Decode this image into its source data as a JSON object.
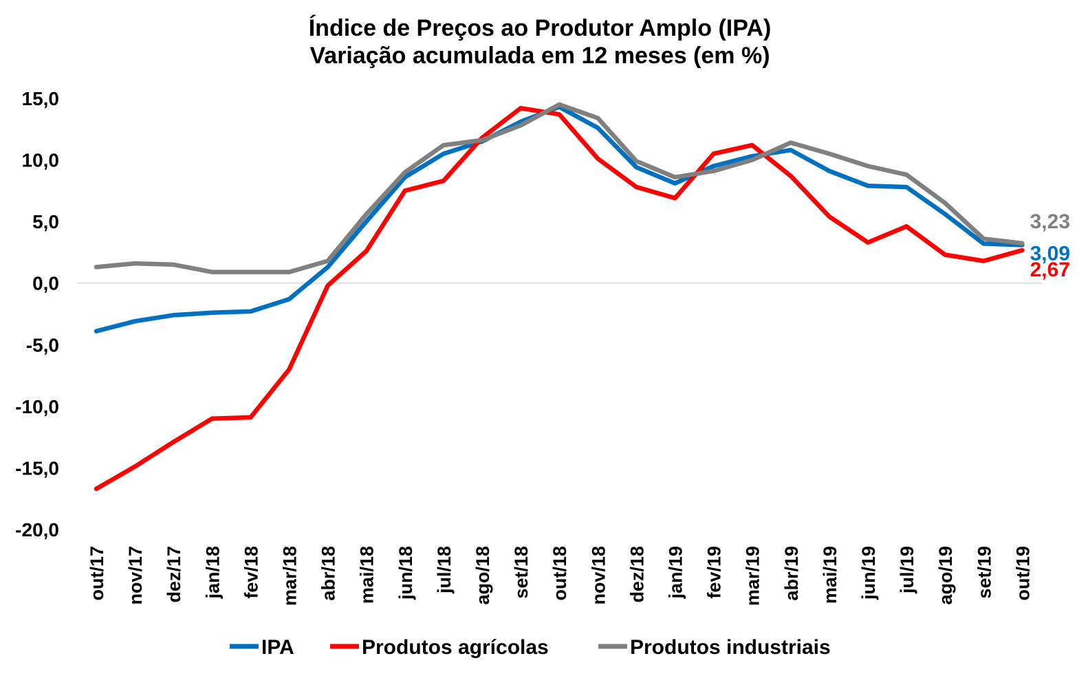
{
  "chart_data": {
    "type": "line",
    "title": "Índice de Preços ao Produtor Amplo (IPA)",
    "subtitle": "Variação acumulada em 12 meses (em %)",
    "ylim": [
      -20,
      15
    ],
    "yticks": [
      "15,0",
      "10,0",
      "5,0",
      "0,0",
      "-5,0",
      "-10,0",
      "-15,0",
      "-20,0"
    ],
    "ytick_values": [
      15,
      10,
      5,
      0,
      -5,
      -10,
      -15,
      -20
    ],
    "x": [
      "out/17",
      "nov/17",
      "dez/17",
      "jan/18",
      "fev/18",
      "mar/18",
      "abr/18",
      "mai/18",
      "jun/18",
      "jul/18",
      "ago/18",
      "set/18",
      "out/18",
      "nov/18",
      "dez/18",
      "jan/19",
      "fev/19",
      "mar/19",
      "abr/19",
      "mai/19",
      "jun/19",
      "jul/19",
      "ago/19",
      "set/19",
      "out/19"
    ],
    "grid": false,
    "zero_line": true,
    "legend_position": "bottom",
    "series": [
      {
        "name": "IPA",
        "color": "#0070C0",
        "values": [
          -3.9,
          -3.1,
          -2.6,
          -2.4,
          -2.3,
          -1.3,
          1.3,
          5.0,
          8.6,
          10.5,
          11.5,
          13.1,
          14.3,
          12.6,
          9.4,
          8.1,
          9.5,
          10.3,
          10.8,
          9.1,
          7.9,
          7.8,
          5.6,
          3.2,
          3.09
        ],
        "end_label": "3,09"
      },
      {
        "name": "Produtos agrícolas",
        "color": "#FF0000",
        "values": [
          -16.7,
          -14.9,
          -12.9,
          -11.0,
          -10.9,
          -7.0,
          -0.2,
          2.6,
          7.5,
          8.3,
          11.8,
          14.2,
          13.7,
          10.1,
          7.8,
          6.9,
          10.5,
          11.2,
          8.7,
          5.4,
          3.3,
          4.6,
          2.3,
          1.8,
          2.67
        ],
        "end_label": "2,67"
      },
      {
        "name": "Produtos industriais",
        "color": "#808080",
        "values": [
          1.3,
          1.6,
          1.5,
          0.9,
          0.9,
          0.9,
          1.8,
          5.6,
          9.0,
          11.2,
          11.6,
          12.8,
          14.5,
          13.4,
          9.9,
          8.6,
          9.1,
          10.0,
          11.4,
          10.5,
          9.5,
          8.8,
          6.5,
          3.6,
          3.23
        ],
        "end_label": "3,23"
      }
    ]
  }
}
